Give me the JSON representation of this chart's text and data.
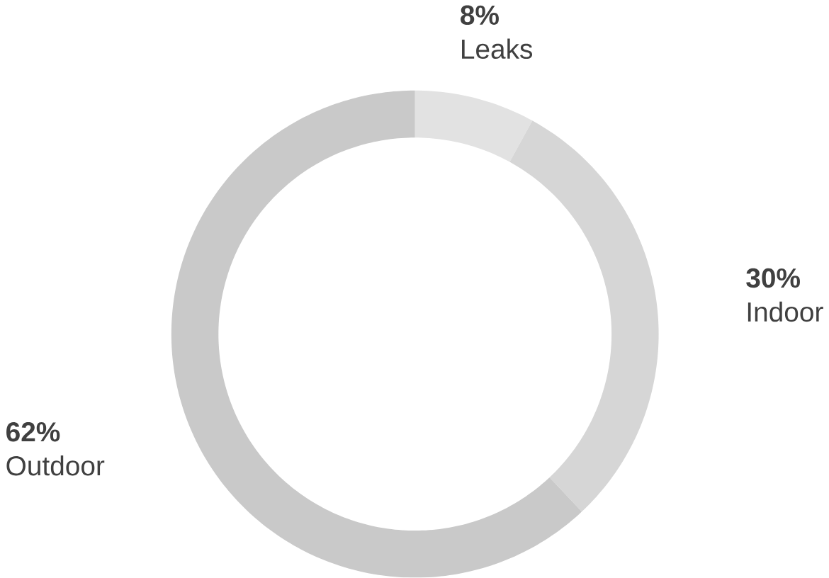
{
  "chart_data": {
    "type": "donut",
    "categories": [
      "Leaks",
      "Indoor",
      "Outdoor"
    ],
    "values": [
      8,
      30,
      62
    ],
    "value_labels": [
      "8%",
      "30%",
      "62%"
    ],
    "colors": [
      "#e2e2e2",
      "#d6d6d6",
      "#c9c9c9"
    ]
  }
}
